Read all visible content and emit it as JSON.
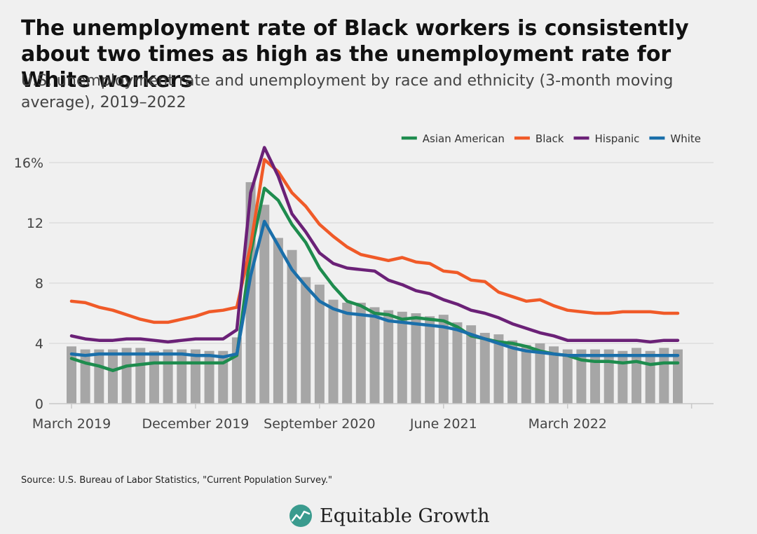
{
  "title": "The unemployment rate of Black workers is consistently about two times as high as the unemployment rate for White workers",
  "subtitle": "U.S. unemployment rate and unemployment by race and ethnicity (3-month moving average), 2019–2022",
  "source": "Source: U.S. Bureau of Labor Statistics, \"Current Population Survey.\"",
  "brand": {
    "name": "Equitable Growth",
    "icon": "equitable-growth-logo-icon",
    "color": "#3a9b8e"
  },
  "chart_data": {
    "type": "bar+line",
    "x": [
      "2019-03",
      "2019-04",
      "2019-05",
      "2019-06",
      "2019-07",
      "2019-08",
      "2019-09",
      "2019-10",
      "2019-11",
      "2019-12",
      "2020-01",
      "2020-02",
      "2020-03",
      "2020-04",
      "2020-05",
      "2020-06",
      "2020-07",
      "2020-08",
      "2020-09",
      "2020-10",
      "2020-11",
      "2020-12",
      "2021-01",
      "2021-02",
      "2021-03",
      "2021-04",
      "2021-05",
      "2021-06",
      "2021-07",
      "2021-08",
      "2021-09",
      "2021-10",
      "2021-11",
      "2021-12",
      "2022-01",
      "2022-02",
      "2022-03",
      "2022-04",
      "2022-05",
      "2022-06",
      "2022-07",
      "2022-08",
      "2022-09",
      "2022-10",
      "2022-11"
    ],
    "x_tick_labels": [
      {
        "x": "2019-03",
        "label": "March 2019"
      },
      {
        "x": "2019-12",
        "label": "December 2019"
      },
      {
        "x": "2020-09",
        "label": "September 2020"
      },
      {
        "x": "2021-06",
        "label": "June 2021"
      },
      {
        "x": "2022-03",
        "label": "March 2022"
      }
    ],
    "y_ticks": [
      0,
      4,
      8,
      12,
      16
    ],
    "y_tick_labels": [
      "0",
      "4",
      "8",
      "12",
      "16%"
    ],
    "ylim": [
      0,
      17.5
    ],
    "grid": "horizontal",
    "legend_position": "top-right",
    "bars": {
      "color": "#a6a6a6",
      "values": [
        3.8,
        3.6,
        3.6,
        3.6,
        3.7,
        3.7,
        3.5,
        3.6,
        3.6,
        3.6,
        3.5,
        3.5,
        4.4,
        14.7,
        13.2,
        11.0,
        10.2,
        8.4,
        7.9,
        6.9,
        6.7,
        6.7,
        6.4,
        6.2,
        6.1,
        6.0,
        5.8,
        5.9,
        5.4,
        5.2,
        4.7,
        4.6,
        4.2,
        3.9,
        4.0,
        3.8,
        3.6,
        3.6,
        3.6,
        3.6,
        3.5,
        3.7,
        3.5,
        3.7,
        3.6
      ]
    },
    "series": [
      {
        "name": "Asian American",
        "color": "#1e8c4e",
        "values": [
          3.0,
          2.7,
          2.5,
          2.2,
          2.5,
          2.6,
          2.7,
          2.7,
          2.7,
          2.7,
          2.7,
          2.7,
          3.2,
          10.0,
          14.3,
          13.5,
          11.9,
          10.7,
          9.0,
          7.8,
          6.8,
          6.5,
          6.0,
          5.9,
          5.6,
          5.7,
          5.6,
          5.5,
          5.1,
          4.5,
          4.3,
          4.1,
          4.0,
          3.8,
          3.5,
          3.3,
          3.2,
          2.9,
          2.8,
          2.8,
          2.7,
          2.8,
          2.6,
          2.7,
          2.7
        ]
      },
      {
        "name": "Black",
        "color": "#f05a28",
        "values": [
          6.8,
          6.7,
          6.4,
          6.2,
          5.9,
          5.6,
          5.4,
          5.4,
          5.6,
          5.8,
          6.1,
          6.2,
          6.4,
          10.5,
          16.2,
          15.4,
          14.0,
          13.1,
          11.9,
          11.1,
          10.4,
          9.9,
          9.7,
          9.5,
          9.7,
          9.4,
          9.3,
          8.8,
          8.7,
          8.2,
          8.1,
          7.4,
          7.1,
          6.8,
          6.9,
          6.5,
          6.2,
          6.1,
          6.0,
          6.0,
          6.1,
          6.1,
          6.1,
          6.0,
          6.0
        ]
      },
      {
        "name": "Hispanic",
        "color": "#6b2177",
        "values": [
          4.5,
          4.3,
          4.2,
          4.2,
          4.3,
          4.3,
          4.2,
          4.1,
          4.2,
          4.3,
          4.3,
          4.3,
          4.9,
          14.0,
          17.0,
          15.1,
          12.6,
          11.4,
          10.0,
          9.3,
          9.0,
          8.9,
          8.8,
          8.2,
          7.9,
          7.5,
          7.3,
          6.9,
          6.6,
          6.2,
          6.0,
          5.7,
          5.3,
          5.0,
          4.7,
          4.5,
          4.2,
          4.2,
          4.2,
          4.2,
          4.2,
          4.2,
          4.1,
          4.2,
          4.2
        ]
      },
      {
        "name": "White",
        "color": "#1a6faa",
        "values": [
          3.3,
          3.2,
          3.3,
          3.3,
          3.3,
          3.3,
          3.3,
          3.3,
          3.3,
          3.2,
          3.2,
          3.1,
          3.3,
          8.5,
          12.1,
          10.5,
          8.9,
          7.8,
          6.8,
          6.3,
          6.0,
          5.9,
          5.8,
          5.5,
          5.4,
          5.3,
          5.2,
          5.1,
          4.9,
          4.6,
          4.3,
          4.0,
          3.7,
          3.5,
          3.4,
          3.3,
          3.2,
          3.2,
          3.2,
          3.2,
          3.2,
          3.2,
          3.2,
          3.2,
          3.2
        ]
      }
    ]
  }
}
